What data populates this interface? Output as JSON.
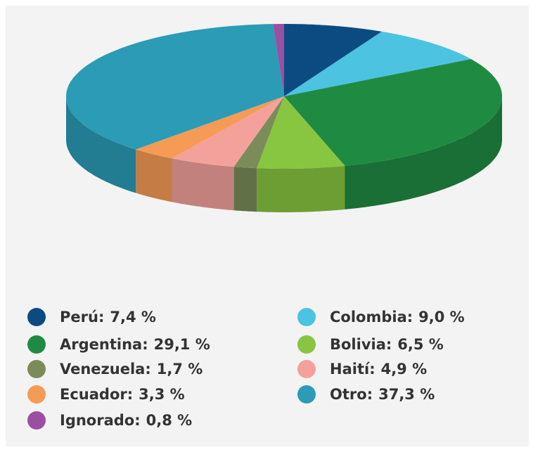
{
  "chart_data": {
    "type": "pie3d",
    "categories": [
      "Perú",
      "Colombia",
      "Argentina",
      "Bolivia",
      "Venezuela",
      "Haití",
      "Ecuador",
      "Otro",
      "Ignorado"
    ],
    "values": [
      7.4,
      9.0,
      29.1,
      6.5,
      1.7,
      4.9,
      3.3,
      37.3,
      0.8
    ],
    "value_labels": [
      "7,4 %",
      "9,0 %",
      "29,1 %",
      "6,5 %",
      "1,7 %",
      "4,9 %",
      "3,3 %",
      "37,3 %",
      "0,8 %"
    ],
    "colors": [
      "#0c4b82",
      "#4cc3e0",
      "#1f8b42",
      "#88c540",
      "#7b8c5a",
      "#f4a19c",
      "#f69b56",
      "#2b9bb6",
      "#9a4fa3"
    ],
    "legend": "bottom"
  }
}
